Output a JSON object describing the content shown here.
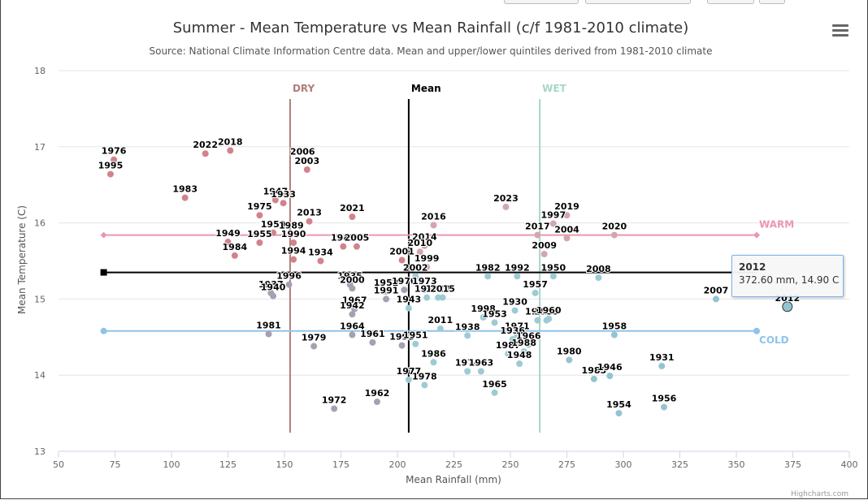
{
  "chart_data": {
    "type": "scatter",
    "title": "Summer - Mean Temperature vs Mean Rainfall (c/f 1981-2010 climate)",
    "subtitle": "Source: National Climate Information Centre data. Mean and upper/lower quintiles derived from 1981-2010 climate",
    "xlabel": "Mean Rainfall (mm)",
    "ylabel": "Mean Temperature (C)",
    "xlim": [
      50,
      400
    ],
    "ylim": [
      13,
      18
    ],
    "xticks": [
      "50",
      "75",
      "100",
      "125",
      "150",
      "175",
      "200",
      "225",
      "250",
      "275",
      "300",
      "325",
      "350",
      "375",
      "400"
    ],
    "yticks": [
      "13",
      "14",
      "15",
      "16",
      "17",
      "18"
    ],
    "grid": "horizontal",
    "reference_lines": {
      "dry": {
        "label": "DRY",
        "x": 152.5,
        "color": "#b07f7a"
      },
      "mean_v": {
        "label": "Mean",
        "x": 205,
        "color": "#000000"
      },
      "wet": {
        "label": "WET",
        "x": 263,
        "color": "#a6d6c6"
      },
      "warm": {
        "label": "WARM",
        "y": 15.84,
        "x_range": [
          70,
          359
        ],
        "color": "#ec96b0"
      },
      "mean_h": {
        "y": 15.35,
        "x_range": [
          70,
          359
        ],
        "color": "#000000"
      },
      "cold": {
        "label": "COLD",
        "y": 14.58,
        "x_range": [
          70,
          359
        ],
        "color": "#8ec4ea"
      }
    },
    "points": [
      {
        "year": "1976",
        "x": 74.5,
        "y": 16.83
      },
      {
        "year": "1995",
        "x": 73,
        "y": 16.64
      },
      {
        "year": "2022",
        "x": 115,
        "y": 16.91
      },
      {
        "year": "2018",
        "x": 126,
        "y": 16.95
      },
      {
        "year": "1983",
        "x": 106,
        "y": 16.33
      },
      {
        "year": "2006",
        "x": 158,
        "y": 16.82
      },
      {
        "year": "2003",
        "x": 160,
        "y": 16.7
      },
      {
        "year": "1947",
        "x": 146,
        "y": 16.3
      },
      {
        "year": "1933",
        "x": 149.5,
        "y": 16.26
      },
      {
        "year": "1975",
        "x": 139,
        "y": 16.1
      },
      {
        "year": "2013",
        "x": 161,
        "y": 16.02
      },
      {
        "year": "1959",
        "x": 145,
        "y": 15.87
      },
      {
        "year": "1989",
        "x": 153,
        "y": 15.85
      },
      {
        "year": "1949",
        "x": 125,
        "y": 15.75
      },
      {
        "year": "1955",
        "x": 139,
        "y": 15.74
      },
      {
        "year": "1990",
        "x": 154,
        "y": 15.74
      },
      {
        "year": "1984",
        "x": 128,
        "y": 15.57
      },
      {
        "year": "1994",
        "x": 154,
        "y": 15.52
      },
      {
        "year": "1934",
        "x": 166,
        "y": 15.5
      },
      {
        "year": "2021",
        "x": 180,
        "y": 16.08
      },
      {
        "year": "1982",
        "x": 176,
        "y": 15.69
      },
      {
        "year": "2005",
        "x": 182,
        "y": 15.69
      },
      {
        "year": "2001",
        "x": 202,
        "y": 15.51
      },
      {
        "year": "2016",
        "x": 216,
        "y": 15.97
      },
      {
        "year": "2014",
        "x": 212,
        "y": 15.7
      },
      {
        "year": "2010",
        "x": 210,
        "y": 15.62
      },
      {
        "year": "1999",
        "x": 213,
        "y": 15.42
      },
      {
        "year": "2002",
        "x": 208,
        "y": 15.3
      },
      {
        "year": "1996",
        "x": 152,
        "y": 15.19
      },
      {
        "year": "1937",
        "x": 144,
        "y": 15.08
      },
      {
        "year": "1940",
        "x": 145,
        "y": 15.04
      },
      {
        "year": "1935",
        "x": 179,
        "y": 15.19
      },
      {
        "year": "2000",
        "x": 180,
        "y": 15.14
      },
      {
        "year": "1952",
        "x": 195,
        "y": 15.1
      },
      {
        "year": "1970",
        "x": 203,
        "y": 15.12
      },
      {
        "year": "1991",
        "x": 195,
        "y": 15.0
      },
      {
        "year": "1973",
        "x": 212,
        "y": 15.12
      },
      {
        "year": "1919",
        "x": 213,
        "y": 15.02
      },
      {
        "year": "1920",
        "x": 218,
        "y": 15.02
      },
      {
        "year": "2015",
        "x": 220,
        "y": 15.02
      },
      {
        "year": "1967",
        "x": 181,
        "y": 14.87
      },
      {
        "year": "1942",
        "x": 180,
        "y": 14.8
      },
      {
        "year": "1943",
        "x": 205,
        "y": 14.88
      },
      {
        "year": "1981",
        "x": 143,
        "y": 14.54
      },
      {
        "year": "1979",
        "x": 163,
        "y": 14.38
      },
      {
        "year": "1964",
        "x": 180,
        "y": 14.53
      },
      {
        "year": "1961",
        "x": 189,
        "y": 14.43
      },
      {
        "year": "1993",
        "x": 202,
        "y": 14.39
      },
      {
        "year": "1951",
        "x": 208,
        "y": 14.41
      },
      {
        "year": "2011",
        "x": 219,
        "y": 14.61
      },
      {
        "year": "1986",
        "x": 216,
        "y": 14.17
      },
      {
        "year": "1977",
        "x": 205,
        "y": 13.94
      },
      {
        "year": "1978",
        "x": 212,
        "y": 13.87
      },
      {
        "year": "1972",
        "x": 172,
        "y": 13.56
      },
      {
        "year": "1962",
        "x": 191,
        "y": 13.65
      },
      {
        "year": "2023",
        "x": 248,
        "y": 16.21
      },
      {
        "year": "2019",
        "x": 275,
        "y": 16.1
      },
      {
        "year": "1997",
        "x": 269,
        "y": 15.99
      },
      {
        "year": "2017",
        "x": 262,
        "y": 15.84
      },
      {
        "year": "2004",
        "x": 275,
        "y": 15.8
      },
      {
        "year": "2009",
        "x": 265,
        "y": 15.59
      },
      {
        "year": "2020",
        "x": 296,
        "y": 15.84
      },
      {
        "year": "1982",
        "x": 240,
        "y": 15.3
      },
      {
        "year": "1992",
        "x": 253,
        "y": 15.3
      },
      {
        "year": "1950",
        "x": 269,
        "y": 15.3
      },
      {
        "year": "2008",
        "x": 289,
        "y": 15.28
      },
      {
        "year": "1957",
        "x": 261,
        "y": 15.08
      },
      {
        "year": "2007",
        "x": 341,
        "y": 15.0
      },
      {
        "year": "2012",
        "x": 372.6,
        "y": 14.9
      },
      {
        "year": "1930",
        "x": 252,
        "y": 14.85
      },
      {
        "year": "1998",
        "x": 238,
        "y": 14.76
      },
      {
        "year": "1953",
        "x": 243,
        "y": 14.69
      },
      {
        "year": "1912",
        "x": 262,
        "y": 14.72
      },
      {
        "year": "1939",
        "x": 266,
        "y": 14.72
      },
      {
        "year": "1960",
        "x": 267,
        "y": 14.74
      },
      {
        "year": "1938",
        "x": 231,
        "y": 14.52
      },
      {
        "year": "1971",
        "x": 253,
        "y": 14.53
      },
      {
        "year": "1936",
        "x": 251,
        "y": 14.47
      },
      {
        "year": "1966",
        "x": 258,
        "y": 14.4
      },
      {
        "year": "1987",
        "x": 249,
        "y": 14.28
      },
      {
        "year": "1988",
        "x": 256,
        "y": 14.31
      },
      {
        "year": "1948",
        "x": 254,
        "y": 14.15
      },
      {
        "year": "1958",
        "x": 296,
        "y": 14.53
      },
      {
        "year": "1974",
        "x": 231,
        "y": 14.05
      },
      {
        "year": "1963",
        "x": 237,
        "y": 14.05
      },
      {
        "year": "1980",
        "x": 276,
        "y": 14.2
      },
      {
        "year": "1985",
        "x": 287,
        "y": 13.95
      },
      {
        "year": "1946",
        "x": 294,
        "y": 13.99
      },
      {
        "year": "1931",
        "x": 317,
        "y": 14.12
      },
      {
        "year": "1965",
        "x": 243,
        "y": 13.77
      },
      {
        "year": "1954",
        "x": 298,
        "y": 13.5
      },
      {
        "year": "1956",
        "x": 318,
        "y": 13.58
      }
    ]
  },
  "tooltip": {
    "title": "2012",
    "value": "372.60 mm, 14.90 C"
  },
  "credits": "Highcharts.com",
  "menu_icon": "hamburger-menu-icon"
}
